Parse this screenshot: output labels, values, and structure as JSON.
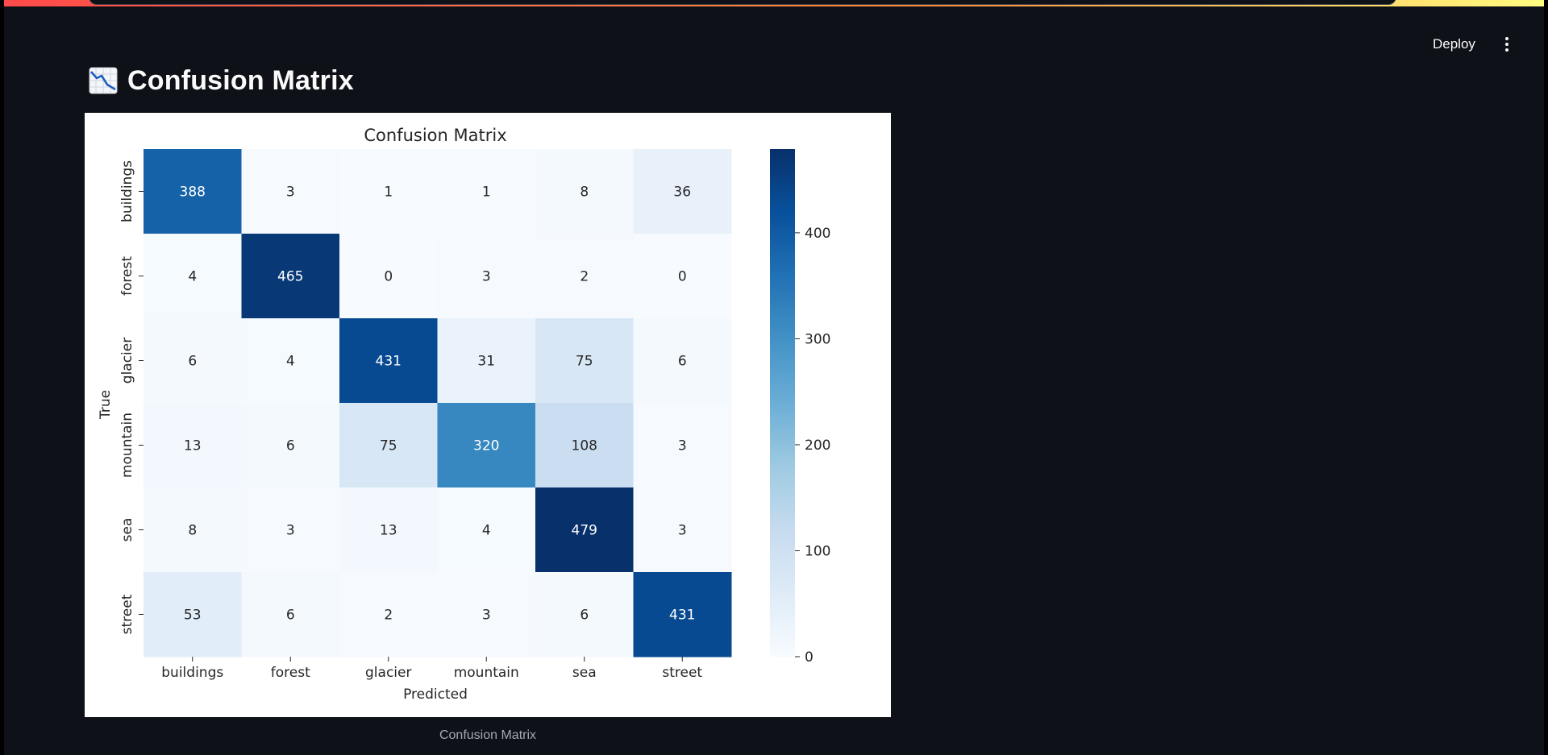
{
  "app": {
    "deploy_label": "Deploy",
    "menu_icon": "kebab-menu-icon",
    "accent_gradient": [
      "#ff4b4b",
      "#fffd80"
    ]
  },
  "page": {
    "title_icon": "chart-decreasing-icon",
    "title": "Confusion Matrix",
    "caption": "Confusion Matrix"
  },
  "chart_data": {
    "type": "heatmap",
    "title": "Confusion Matrix",
    "xlabel": "Predicted",
    "ylabel": "True",
    "x_categories": [
      "buildings",
      "forest",
      "glacier",
      "mountain",
      "sea",
      "street"
    ],
    "y_categories": [
      "buildings",
      "forest",
      "glacier",
      "mountain",
      "sea",
      "street"
    ],
    "values": [
      [
        388,
        3,
        1,
        1,
        8,
        36
      ],
      [
        4,
        465,
        0,
        3,
        2,
        0
      ],
      [
        6,
        4,
        431,
        31,
        75,
        6
      ],
      [
        13,
        6,
        75,
        320,
        108,
        3
      ],
      [
        8,
        3,
        13,
        4,
        479,
        3
      ],
      [
        53,
        6,
        2,
        3,
        6,
        431
      ]
    ],
    "colormap": "Blues",
    "color_range": [
      0,
      479
    ],
    "colorbar_ticks": [
      0,
      100,
      200,
      300,
      400
    ],
    "colorbar_tick_labels": [
      "0",
      "100",
      "200",
      "300",
      "400"
    ],
    "grid": false
  }
}
